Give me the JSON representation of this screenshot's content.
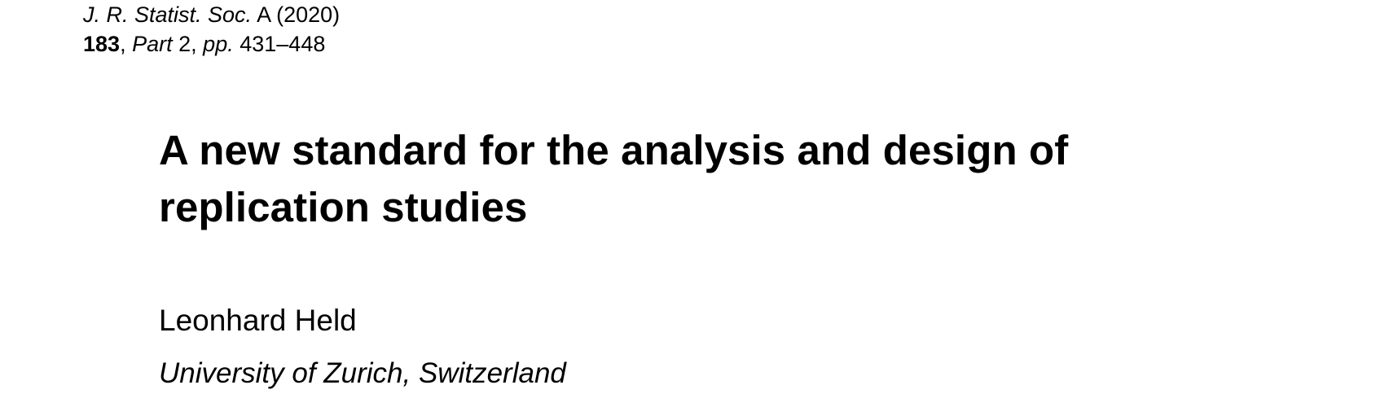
{
  "journal": {
    "name": "J. R. Statist. Soc.",
    "series": "A",
    "year": "(2020)",
    "volume": "183",
    "part_label": "Part",
    "part_number": "2",
    "pages_label": "pp.",
    "pages": "431–448"
  },
  "paper": {
    "title": "A new standard for the analysis and design of replication studies",
    "author": "Leonhard Held",
    "affiliation": "University of Zurich, Switzerland"
  }
}
